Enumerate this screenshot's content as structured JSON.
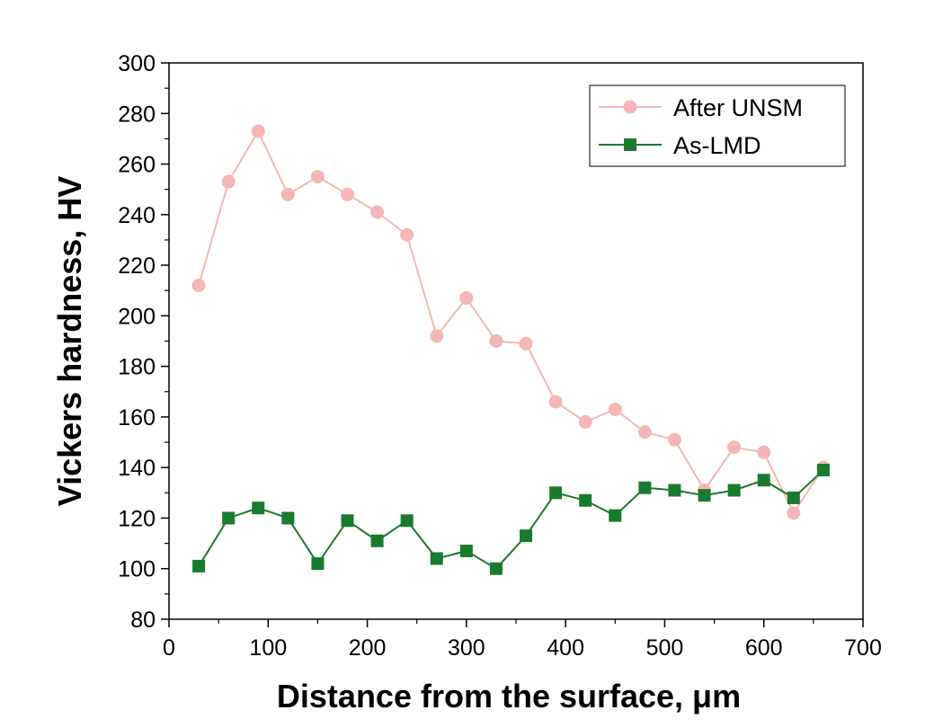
{
  "chart_data": {
    "type": "line",
    "title": "",
    "xlabel": "Distance from the surface, μm",
    "ylabel": "Vickers hardness, HV",
    "xlim": [
      0,
      700
    ],
    "ylim": [
      80,
      300
    ],
    "xticks": [
      0,
      100,
      200,
      300,
      400,
      500,
      600,
      700
    ],
    "yticks": [
      80,
      100,
      120,
      140,
      160,
      180,
      200,
      220,
      240,
      260,
      280,
      300
    ],
    "grid": false,
    "legend_position": "top-right",
    "series": [
      {
        "name": "After UNSM",
        "color": "#f4b6b6",
        "marker": "circle",
        "x": [
          30,
          60,
          90,
          120,
          150,
          180,
          210,
          240,
          270,
          300,
          330,
          360,
          390,
          420,
          450,
          480,
          510,
          540,
          570,
          600,
          630,
          660
        ],
        "y": [
          212,
          253,
          273,
          248,
          255,
          248,
          241,
          232,
          192,
          207,
          190,
          189,
          166,
          158,
          163,
          154,
          151,
          131,
          148,
          146,
          122,
          140
        ]
      },
      {
        "name": "As-LMD",
        "color": "#1a7a2e",
        "marker": "square",
        "x": [
          30,
          60,
          90,
          120,
          150,
          180,
          210,
          240,
          270,
          300,
          330,
          360,
          390,
          420,
          450,
          480,
          510,
          540,
          570,
          600,
          630,
          660
        ],
        "y": [
          101,
          120,
          124,
          120,
          102,
          119,
          111,
          119,
          104,
          107,
          100,
          113,
          130,
          127,
          121,
          132,
          131,
          129,
          131,
          135,
          128,
          139
        ]
      }
    ]
  }
}
